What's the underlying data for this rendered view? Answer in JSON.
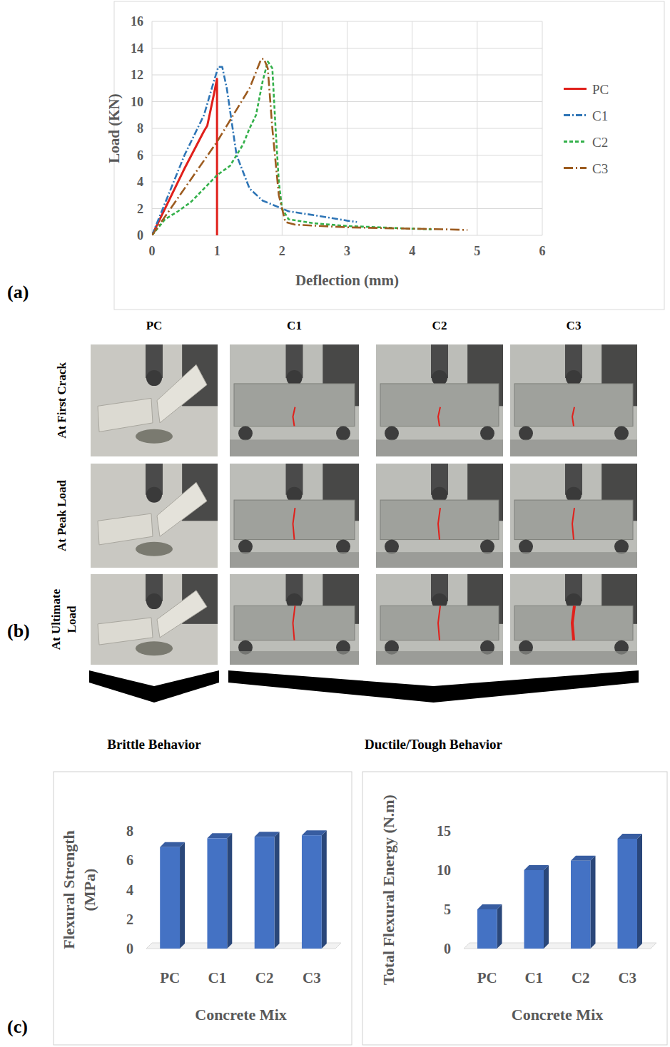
{
  "chart_data": [
    {
      "type": "line",
      "x_label": "Deflection (mm)",
      "y_label": "Load (KN)",
      "xlim": [
        0,
        6
      ],
      "xticks": [
        0,
        1,
        2,
        3,
        4,
        5,
        6
      ],
      "ylim": [
        0,
        16
      ],
      "yticks": [
        0,
        2,
        4,
        6,
        8,
        10,
        12,
        14,
        16
      ],
      "grid": true,
      "legend": "right",
      "series": [
        {
          "name": "PC",
          "color": "#e0201b",
          "line_style": "solid",
          "x": [
            0,
            0.5,
            0.8,
            0.85,
            0.95,
            1.0,
            1.0
          ],
          "values": [
            0,
            5,
            7.8,
            8.2,
            10.5,
            11.7,
            0
          ]
        },
        {
          "name": "C1",
          "color": "#2e75b6",
          "line_style": "dash-dot",
          "x": [
            0,
            0.5,
            0.8,
            0.95,
            1.02,
            1.08,
            1.15,
            1.3,
            1.5,
            1.7,
            1.9,
            2.1,
            2.5,
            3.0,
            3.15
          ],
          "values": [
            0,
            6,
            9,
            11.5,
            12.6,
            12.6,
            11,
            6,
            3.5,
            2.6,
            2.2,
            1.8,
            1.5,
            1.1,
            1.0
          ]
        },
        {
          "name": "C2",
          "color": "#33b04a",
          "line_style": "dashed",
          "x": [
            0,
            0.2,
            0.4,
            0.6,
            0.8,
            1.0,
            1.2,
            1.4,
            1.5,
            1.6,
            1.7,
            1.78,
            1.85,
            1.9,
            1.95,
            2.0,
            2.1,
            2.5,
            3.0,
            3.5,
            4.0,
            4.3
          ],
          "values": [
            0,
            1.2,
            1.8,
            2.5,
            3.5,
            4.5,
            5.2,
            6.8,
            8,
            9,
            11.5,
            13,
            12.5,
            8,
            4,
            2,
            1.2,
            0.9,
            0.7,
            0.6,
            0.5,
            0.45
          ]
        },
        {
          "name": "C3",
          "color": "#9c5b1f",
          "line_style": "long-dash-dot",
          "x": [
            0,
            0.5,
            1.0,
            1.5,
            1.68,
            1.72,
            1.78,
            1.85,
            1.95,
            2.05,
            2.2,
            3.0,
            4.0,
            4.5,
            4.85
          ],
          "values": [
            0,
            3.5,
            7,
            11,
            13.2,
            13.2,
            12.5,
            8,
            3,
            1,
            0.8,
            0.6,
            0.5,
            0.45,
            0.4
          ]
        }
      ]
    },
    {
      "type": "bar",
      "x_label": "Concrete Mix",
      "y_label": "Flexural Strength (MPa)",
      "categories": [
        "PC",
        "C1",
        "C2",
        "C3"
      ],
      "values": [
        6.9,
        7.5,
        7.6,
        7.7
      ],
      "color": "#4472c4",
      "ylim": [
        0,
        8
      ],
      "yticks": [
        0,
        2,
        4,
        6,
        8
      ],
      "grid": false
    },
    {
      "type": "bar",
      "x_label": "Concrete Mix",
      "y_label": "Total Flexural Energy (N.m)",
      "categories": [
        "PC",
        "C1",
        "C2",
        "C3"
      ],
      "values": [
        5,
        10,
        11.2,
        14
      ],
      "color": "#4472c4",
      "ylim": [
        0,
        15
      ],
      "yticks": [
        0,
        5,
        10,
        15
      ],
      "grid": false
    }
  ],
  "panel_labels": [
    "(a)",
    "(b)",
    "(c)"
  ],
  "photo_grid": {
    "columns": [
      "PC",
      "C1",
      "C2",
      "C3"
    ],
    "rows": [
      "At First Crack",
      "At Peak Load",
      "At Ultimate Load"
    ],
    "groups": [
      {
        "label": "Brittle Behavior"
      },
      {
        "label": "Ductile/Tough Behavior"
      }
    ]
  }
}
